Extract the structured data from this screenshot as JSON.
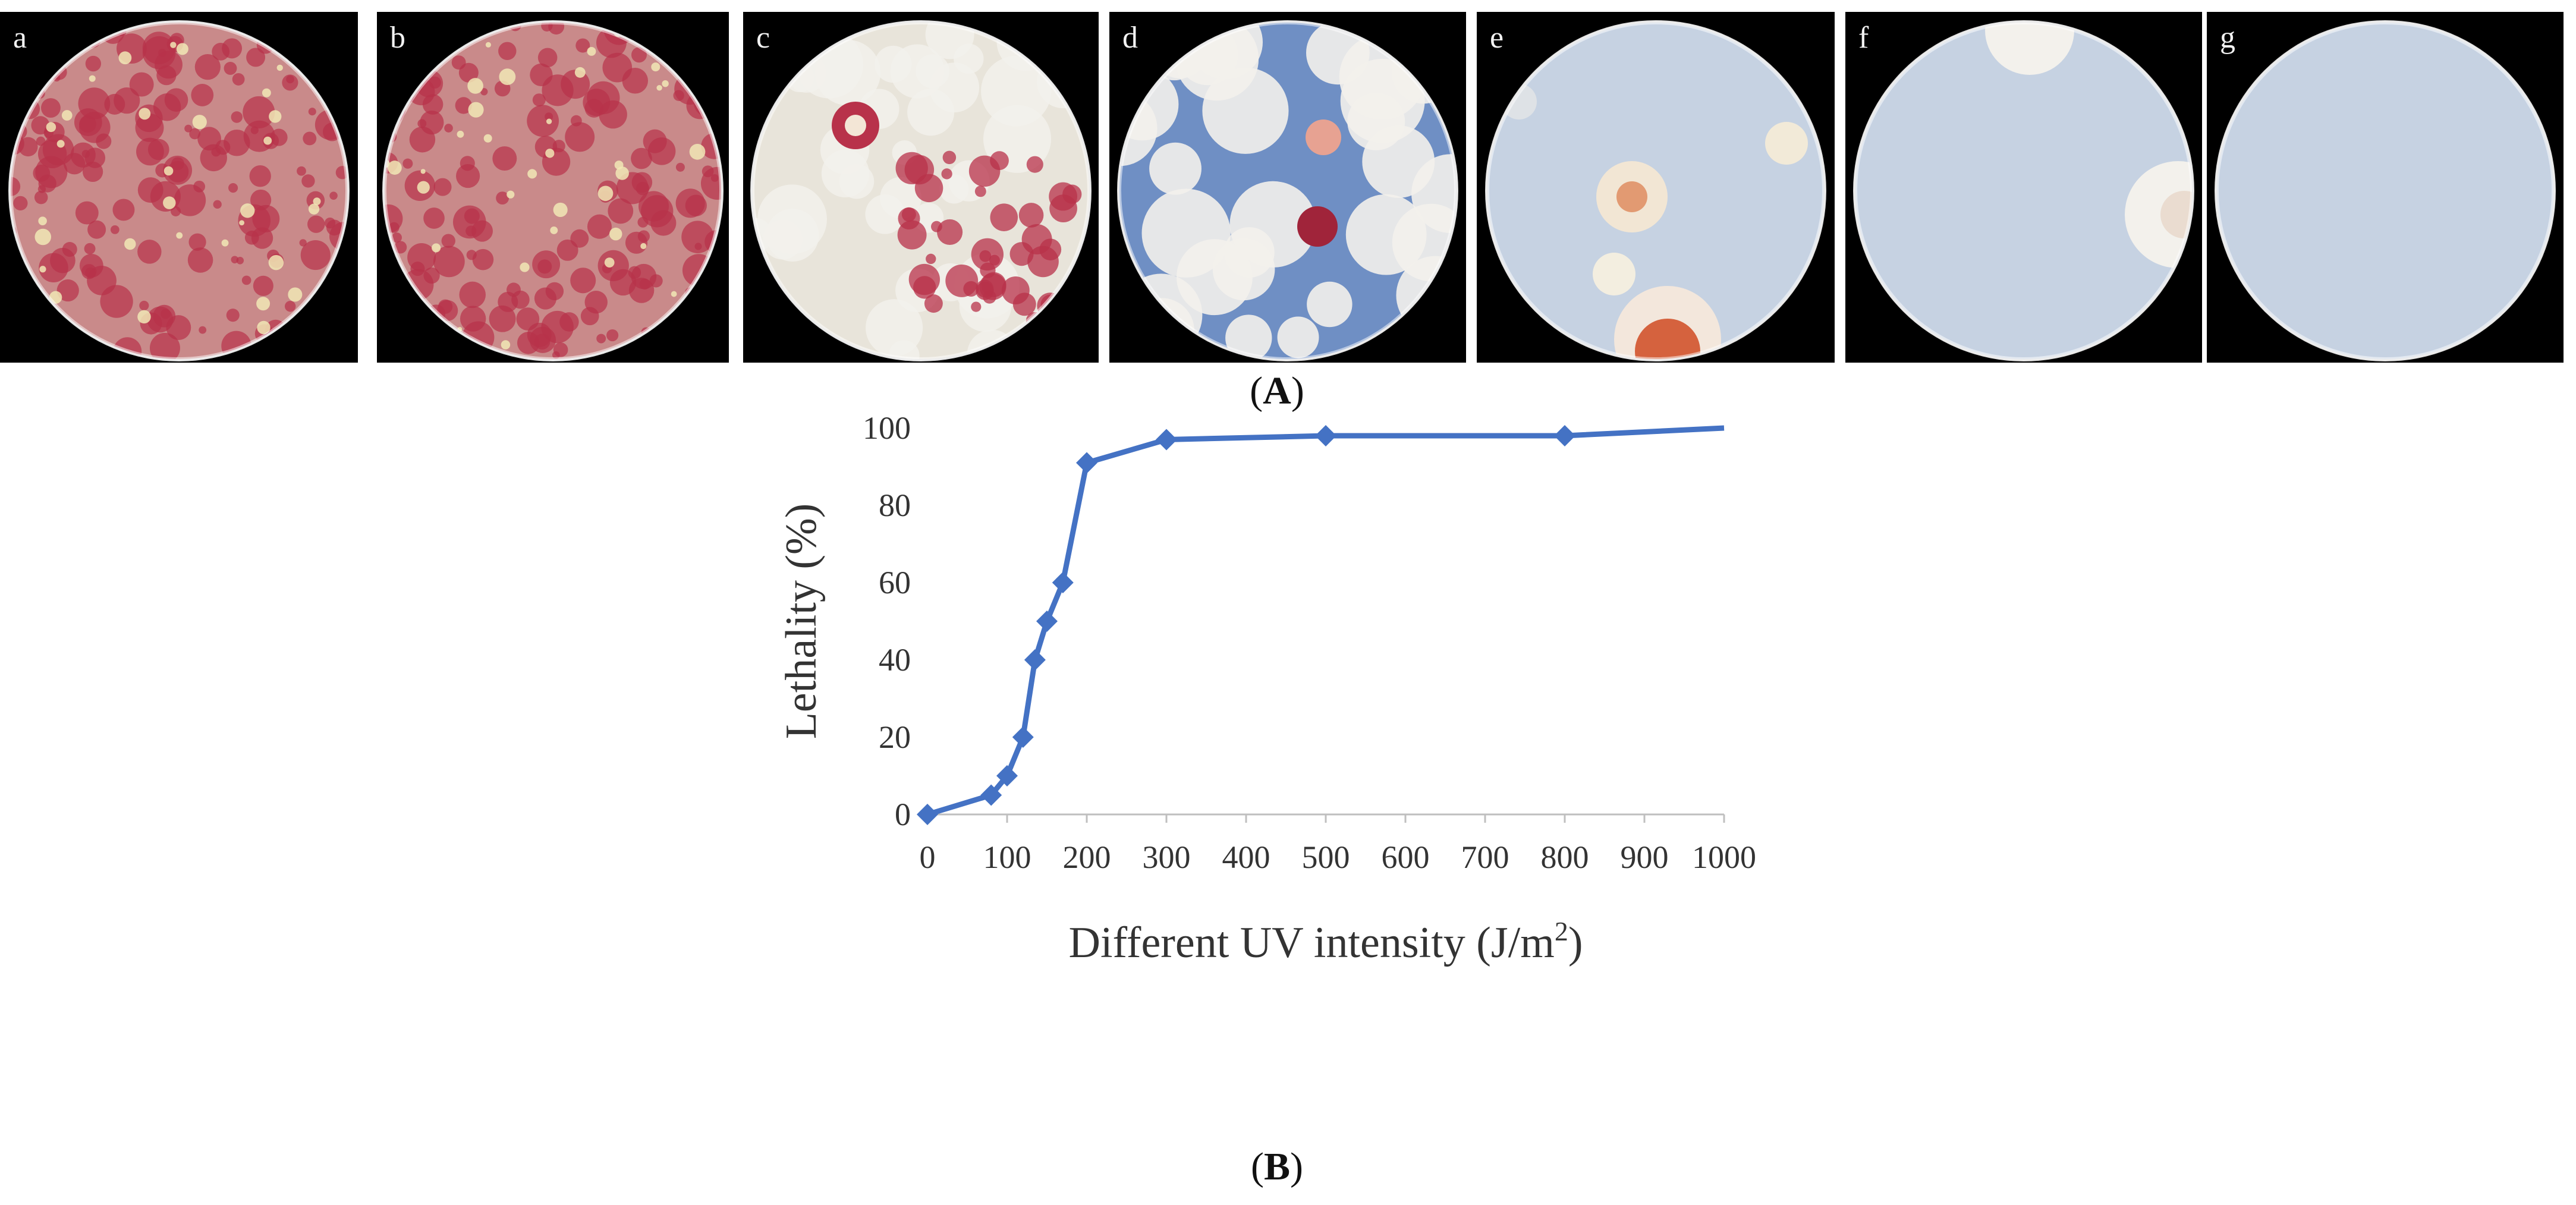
{
  "panel_a": {
    "caption_letter": "A",
    "plates": [
      {
        "label": "a",
        "theme": "dense-red"
      },
      {
        "label": "b",
        "theme": "dense-red"
      },
      {
        "label": "c",
        "theme": "mixed"
      },
      {
        "label": "d",
        "theme": "white-blue"
      },
      {
        "label": "e",
        "theme": "sparse"
      },
      {
        "label": "f",
        "theme": "two-colonies"
      },
      {
        "label": "g",
        "theme": "empty"
      }
    ],
    "colors": {
      "agar_red": "#b8324a",
      "agar_cream": "#e9dcc0",
      "agar_blue": "#6f8fc4",
      "mycelium": "#f3f1ec"
    }
  },
  "panel_b": {
    "caption_letter": "B"
  },
  "chart_data": {
    "type": "line",
    "title": "",
    "xlabel": "Different UV intensity (J/m²)",
    "xlabel_main": "Different UV intensity (J/m",
    "xlabel_sup": "2",
    "xlabel_tail": ")",
    "ylabel": "Lethality (%)",
    "xlim": [
      0,
      1000
    ],
    "ylim": [
      0,
      100
    ],
    "xticks": [
      0,
      100,
      200,
      300,
      400,
      500,
      600,
      700,
      800,
      900,
      1000
    ],
    "yticks": [
      0,
      20,
      40,
      60,
      80,
      100
    ],
    "grid": false,
    "series": [
      {
        "name": "Lethality",
        "color": "#4472c4",
        "marker": "diamond",
        "x": [
          0,
          80,
          100,
          120,
          135,
          150,
          170,
          200,
          300,
          500,
          800,
          1000
        ],
        "y": [
          0,
          5,
          10,
          20,
          40,
          50,
          60,
          91,
          97,
          98,
          98,
          100
        ],
        "marker_indices": [
          0,
          1,
          2,
          3,
          4,
          5,
          6,
          7,
          8,
          9,
          10
        ]
      }
    ]
  }
}
